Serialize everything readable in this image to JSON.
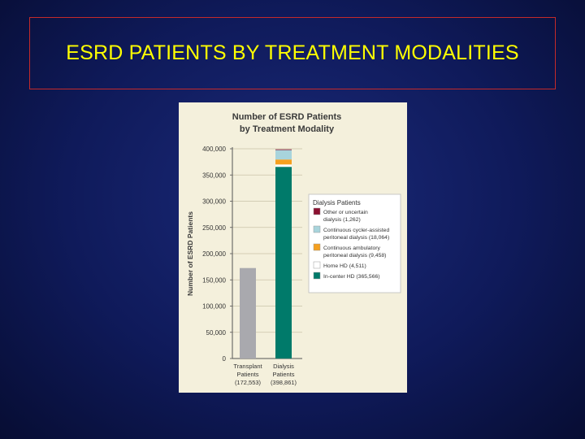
{
  "slide": {
    "title": "ESRD PATIENTS BY TREATMENT MODALITIES"
  },
  "colors": {
    "page_background": "#0f1a5a",
    "title_text": "#ffff00",
    "title_border": "#c42a2a",
    "figure_background": "#f4f0dc",
    "legend_background": "#ffffff"
  },
  "chart_data": {
    "type": "bar",
    "stacked": true,
    "title_lines": [
      "Number of ESRD Patients",
      "by Treatment Modality"
    ],
    "ylabel": "Number of ESRD Patients",
    "xlabel": "",
    "ylim": [
      0,
      400000
    ],
    "yticks": [
      0,
      50000,
      100000,
      150000,
      200000,
      250000,
      300000,
      350000,
      400000
    ],
    "ytick_labels": [
      "0",
      "50,000",
      "100,000",
      "150,000",
      "200,000",
      "250,000",
      "300,000",
      "350,000",
      "400,000"
    ],
    "grid": true,
    "categories": [
      {
        "lines": [
          "Transplant",
          "Patients",
          "(172,553)"
        ]
      },
      {
        "lines": [
          "Dialysis",
          "Patients",
          "(398,861)"
        ]
      }
    ],
    "series": [
      {
        "key": "transplant",
        "values": [
          172553,
          0
        ],
        "color": "#a9a9ae"
      },
      {
        "key": "in_center_hd",
        "values": [
          0,
          365566
        ],
        "color": "#007a6a"
      },
      {
        "key": "home_hd",
        "values": [
          0,
          4511
        ],
        "color": "#ffffff"
      },
      {
        "key": "capd",
        "values": [
          0,
          9458
        ],
        "color": "#f5a020"
      },
      {
        "key": "ccpd",
        "values": [
          0,
          18064
        ],
        "color": "#a8d4dc"
      },
      {
        "key": "other",
        "values": [
          0,
          1262
        ],
        "color": "#8b1030"
      }
    ],
    "legend": {
      "title": "Dialysis Patients",
      "placement": "right",
      "entries": [
        {
          "lines": [
            "Other or uncertain",
            "dialysis (1,262)"
          ],
          "color": "#8b1030"
        },
        {
          "lines": [
            "Continuous cycler-assisted",
            "peritoneal dialysis (18,064)"
          ],
          "color": "#a8d4dc"
        },
        {
          "lines": [
            "Continuous ambulatory",
            "peritoneal dialysis (9,458)"
          ],
          "color": "#f5a020"
        },
        {
          "lines": [
            "Home HD (4,511)"
          ],
          "color": "#ffffff"
        },
        {
          "lines": [
            "In-center HD (365,566)"
          ],
          "color": "#007a6a"
        }
      ]
    }
  }
}
